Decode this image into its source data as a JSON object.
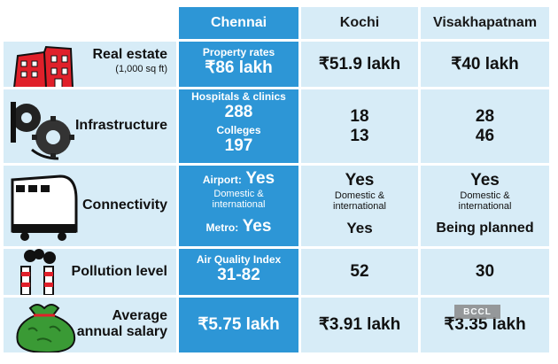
{
  "headers": {
    "chennai": "Chennai",
    "kochi": "Kochi",
    "visakhapatnam": "Visakhapatnam"
  },
  "rows": {
    "real_estate": {
      "label": "Real estate",
      "sublabel": "(1,000 sq ft)",
      "chennai_caption": "Property rates",
      "chennai_value": "₹86 lakh",
      "kochi": "₹51.9 lakh",
      "visakhapatnam": "₹40 lakh"
    },
    "infrastructure": {
      "label": "Infrastructure",
      "chennai_hosp_caption": "Hospitals & clinics",
      "chennai_hosp": "288",
      "chennai_coll_caption": "Colleges",
      "chennai_coll": "197",
      "kochi_hosp": "18",
      "kochi_coll": "13",
      "visakhapatnam_hosp": "28",
      "visakhapatnam_coll": "46"
    },
    "connectivity": {
      "label": "Connectivity",
      "chennai_airport_caption": "Airport:",
      "chennai_airport": "Yes",
      "chennai_airport_detail_1": "Domestic &",
      "chennai_airport_detail_2": "international",
      "chennai_metro_caption": "Metro:",
      "chennai_metro": "Yes",
      "kochi_airport": "Yes",
      "kochi_detail_1": "Domestic &",
      "kochi_detail_2": "international",
      "kochi_metro": "Yes",
      "visakhapatnam_airport": "Yes",
      "visakhapatnam_detail_1": "Domestic &",
      "visakhapatnam_detail_2": "international",
      "visakhapatnam_metro": "Being planned"
    },
    "pollution": {
      "label": "Pollution level",
      "chennai_caption": "Air Quality Index",
      "chennai_value": "31-82",
      "kochi": "52",
      "visakhapatnam": "30"
    },
    "salary": {
      "label_1": "Average",
      "label_2": "annual salary",
      "chennai": "₹5.75 lakh",
      "kochi": "₹3.91 lakh",
      "visakhapatnam": "₹3.35 lakh"
    }
  },
  "watermark": "BCCL",
  "colors": {
    "chennai_blue": "#2d96d6",
    "light_blue": "#d7ecf7",
    "building_red": "#e0202a",
    "bag_green": "#3a9a35"
  }
}
